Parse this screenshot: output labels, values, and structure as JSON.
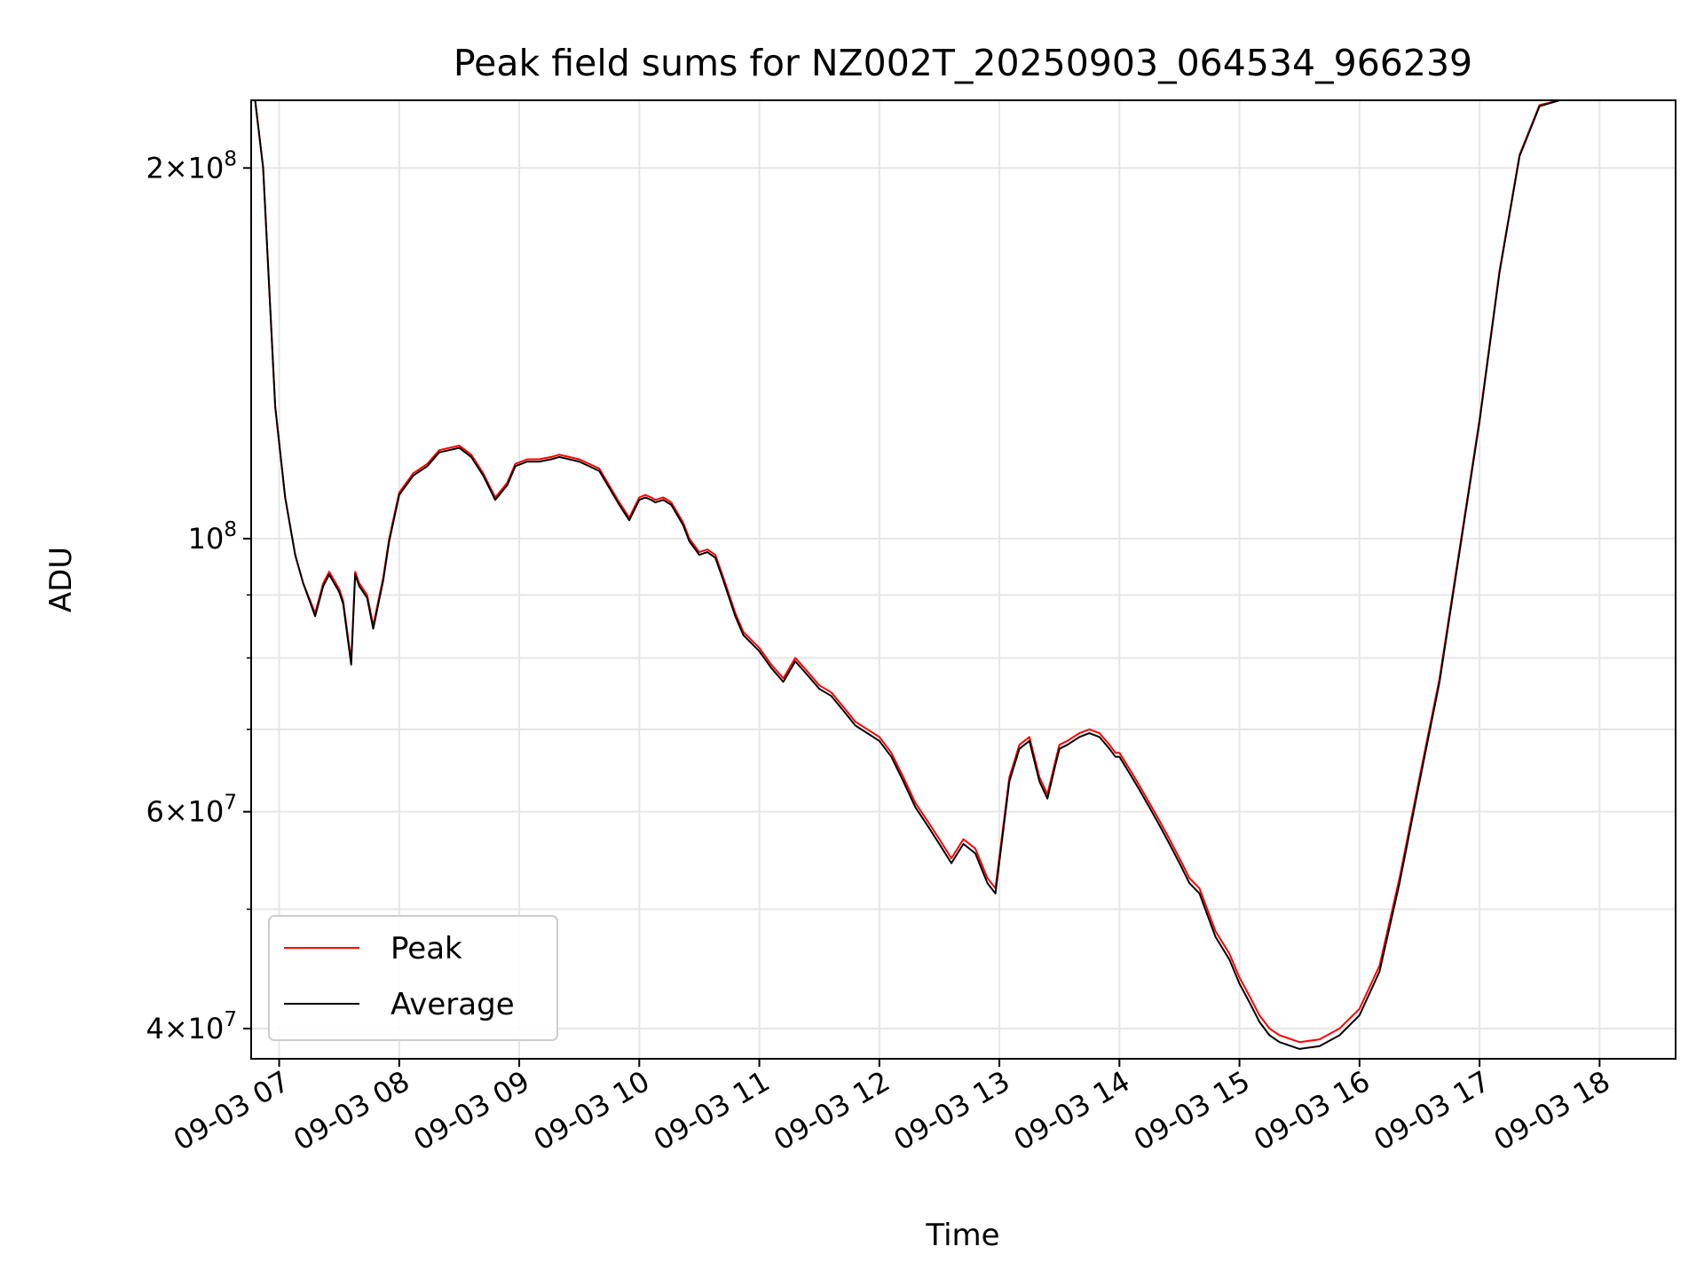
{
  "chart_data": {
    "type": "line",
    "title": "Peak field sums for NZ002T_20250903_064534_966239",
    "xlabel": "Time",
    "ylabel": "ADU",
    "yscale": "log",
    "xlim": [
      "09-03 06:46",
      "09-03 18:38"
    ],
    "ylim": [
      37800000,
      227000000
    ],
    "grid": true,
    "legend_position": "lower-left",
    "x_ticks": [
      "09-03 07",
      "09-03 08",
      "09-03 09",
      "09-03 10",
      "09-03 11",
      "09-03 12",
      "09-03 13",
      "09-03 14",
      "09-03 15",
      "09-03 16",
      "09-03 17",
      "09-03 18"
    ],
    "y_ticks": [
      {
        "value": 200000000,
        "base": "2",
        "exp": "8"
      },
      {
        "value": 100000000,
        "base": "",
        "exp": "8"
      },
      {
        "value": 60000000,
        "base": "6",
        "exp": "7"
      },
      {
        "value": 40000000,
        "base": "4",
        "exp": "7"
      }
    ],
    "y_minor_ticks": [
      50000000,
      70000000,
      80000000,
      90000000
    ],
    "series": [
      {
        "name": "Peak",
        "color": "#ff0000",
        "t": [
          "06:46",
          "06:48",
          "06:52",
          "06:55",
          "06:58",
          "07:03",
          "07:08",
          "07:12",
          "07:18",
          "07:22",
          "07:25",
          "07:30",
          "07:32",
          "07:36",
          "07:38",
          "07:40",
          "07:44",
          "07:47",
          "07:52",
          "07:55",
          "08:00",
          "08:07",
          "08:14",
          "08:20",
          "08:30",
          "08:36",
          "08:42",
          "08:48",
          "08:54",
          "08:58",
          "09:04",
          "09:10",
          "09:16",
          "09:20",
          "09:30",
          "09:40",
          "09:50",
          "09:55",
          "10:00",
          "10:03",
          "10:06",
          "10:08",
          "10:12",
          "10:16",
          "10:22",
          "10:25",
          "10:30",
          "10:34",
          "10:38",
          "10:42",
          "10:48",
          "10:52",
          "11:00",
          "11:06",
          "11:12",
          "11:18",
          "11:24",
          "11:30",
          "11:36",
          "11:42",
          "11:48",
          "11:54",
          "12:00",
          "12:06",
          "12:12",
          "12:18",
          "12:24",
          "12:30",
          "12:36",
          "12:42",
          "12:48",
          "12:54",
          "12:58",
          "13:05",
          "13:10",
          "13:15",
          "13:20",
          "13:24",
          "13:28",
          "13:30",
          "13:34",
          "13:37",
          "13:40",
          "13:45",
          "13:50",
          "13:55",
          "13:58",
          "14:00",
          "14:05",
          "14:10",
          "14:15",
          "14:20",
          "14:25",
          "14:30",
          "14:35",
          "14:40",
          "14:48",
          "14:55",
          "15:00",
          "15:05",
          "15:10",
          "15:15",
          "15:20",
          "15:30",
          "15:40",
          "15:50",
          "16:00",
          "16:10",
          "16:20",
          "16:30",
          "16:40",
          "16:50",
          "17:00",
          "17:10",
          "17:20",
          "17:30",
          "17:40",
          "17:50",
          "17:55",
          "18:00",
          "18:02",
          "18:05",
          "18:08",
          "18:11",
          "18:14",
          "18:17",
          "18:20",
          "18:22",
          "18:25",
          "18:28",
          "18:32",
          "18:38"
        ],
        "values": [
          227000000,
          227000000,
          200000000,
          160000000,
          128000000,
          108000000,
          97000000,
          92000000,
          87000000,
          92000000,
          94000000,
          91000000,
          89000000,
          79500000,
          94000000,
          92000000,
          90000000,
          85000000,
          93000000,
          100000000,
          109000000,
          113000000,
          115000000,
          118000000,
          119000000,
          117000000,
          113000000,
          108000000,
          111000000,
          115000000,
          116000000,
          116000000,
          116500000,
          117000000,
          116000000,
          114000000,
          107000000,
          104000000,
          108000000,
          108500000,
          108000000,
          107500000,
          108000000,
          107000000,
          103000000,
          100000000,
          97500000,
          98000000,
          97000000,
          93000000,
          87000000,
          84000000,
          81500000,
          79000000,
          77000000,
          80000000,
          78000000,
          76000000,
          75000000,
          73000000,
          71000000,
          70000000,
          69000000,
          67000000,
          64000000,
          61000000,
          59000000,
          57000000,
          55000000,
          57000000,
          56000000,
          53000000,
          52000000,
          64000000,
          68000000,
          69000000,
          64000000,
          62000000,
          66000000,
          68000000,
          68500000,
          69000000,
          69500000,
          70000000,
          69500000,
          68000000,
          67000000,
          67000000,
          65000000,
          63000000,
          61000000,
          59000000,
          57000000,
          55000000,
          53000000,
          52000000,
          48000000,
          46000000,
          44000000,
          42500000,
          41000000,
          40000000,
          39500000,
          39000000,
          39200000,
          40000000,
          41500000,
          45000000,
          53000000,
          64000000,
          77000000,
          98000000,
          125000000,
          165000000,
          205000000,
          225000000,
          227000000,
          227000000,
          227000000,
          227000000,
          227000000,
          227000000,
          227000000,
          227000000,
          227000000,
          227000000,
          227000000,
          227000000,
          227000000,
          227000000,
          227000000,
          227000000
        ]
      },
      {
        "name": "Average",
        "color": "#000000",
        "t": [
          "06:46",
          "06:48",
          "06:52",
          "06:55",
          "06:58",
          "07:03",
          "07:08",
          "07:12",
          "07:18",
          "07:22",
          "07:25",
          "07:30",
          "07:32",
          "07:36",
          "07:38",
          "07:40",
          "07:44",
          "07:47",
          "07:52",
          "07:55",
          "08:00",
          "08:07",
          "08:14",
          "08:20",
          "08:30",
          "08:36",
          "08:42",
          "08:48",
          "08:54",
          "08:58",
          "09:04",
          "09:10",
          "09:16",
          "09:20",
          "09:30",
          "09:40",
          "09:50",
          "09:55",
          "10:00",
          "10:03",
          "10:06",
          "10:08",
          "10:12",
          "10:16",
          "10:22",
          "10:25",
          "10:30",
          "10:34",
          "10:38",
          "10:42",
          "10:48",
          "10:52",
          "11:00",
          "11:06",
          "11:12",
          "11:18",
          "11:24",
          "11:30",
          "11:36",
          "11:42",
          "11:48",
          "11:54",
          "12:00",
          "12:06",
          "12:12",
          "12:18",
          "12:24",
          "12:30",
          "12:36",
          "12:42",
          "12:48",
          "12:54",
          "12:58",
          "13:05",
          "13:10",
          "13:15",
          "13:20",
          "13:24",
          "13:28",
          "13:30",
          "13:34",
          "13:37",
          "13:40",
          "13:45",
          "13:50",
          "13:55",
          "13:58",
          "14:00",
          "14:05",
          "14:10",
          "14:15",
          "14:20",
          "14:25",
          "14:30",
          "14:35",
          "14:40",
          "14:48",
          "14:55",
          "15:00",
          "15:05",
          "15:10",
          "15:15",
          "15:20",
          "15:30",
          "15:40",
          "15:50",
          "16:00",
          "16:10",
          "16:20",
          "16:30",
          "16:40",
          "16:50",
          "17:00",
          "17:10",
          "17:20",
          "17:30",
          "17:40",
          "17:50",
          "17:55",
          "18:00",
          "18:02",
          "18:05",
          "18:08",
          "18:11",
          "18:14",
          "18:17",
          "18:20",
          "18:22",
          "18:25",
          "18:28",
          "18:32",
          "18:38"
        ],
        "values": [
          227000000,
          227000000,
          200000000,
          160000000,
          128000000,
          108000000,
          97000000,
          92000000,
          86500000,
          91500000,
          93500000,
          90500000,
          88500000,
          79000000,
          93500000,
          91500000,
          89500000,
          84500000,
          92500000,
          99500000,
          108500000,
          112500000,
          114500000,
          117500000,
          118500000,
          116500000,
          112500000,
          107500000,
          110500000,
          114500000,
          115500000,
          115500000,
          116000000,
          116500000,
          115500000,
          113500000,
          106500000,
          103500000,
          107500000,
          108000000,
          107500000,
          107000000,
          107500000,
          106500000,
          102500000,
          99500000,
          97000000,
          97500000,
          96500000,
          92500000,
          86500000,
          83500000,
          81000000,
          78500000,
          76500000,
          79500000,
          77500000,
          75500000,
          74500000,
          72500000,
          70500000,
          69500000,
          68500000,
          66500000,
          63500000,
          60500000,
          58500000,
          56500000,
          54500000,
          56500000,
          55500000,
          52500000,
          51500000,
          63500000,
          67500000,
          68500000,
          63500000,
          61500000,
          65500000,
          67500000,
          68000000,
          68500000,
          69000000,
          69500000,
          69000000,
          67500000,
          66500000,
          66500000,
          64500000,
          62500000,
          60500000,
          58500000,
          56500000,
          54500000,
          52500000,
          51500000,
          47500000,
          45500000,
          43500000,
          42000000,
          40500000,
          39500000,
          39000000,
          38500000,
          38700000,
          39500000,
          41000000,
          44500000,
          52500000,
          63500000,
          76500000,
          97500000,
          124500000,
          164500000,
          204500000,
          224500000,
          227000000,
          227000000,
          227000000,
          227000000,
          227000000,
          227000000,
          227000000,
          227000000,
          227000000,
          227000000,
          227000000,
          227000000,
          227000000,
          227000000,
          227000000,
          227000000
        ]
      }
    ]
  }
}
